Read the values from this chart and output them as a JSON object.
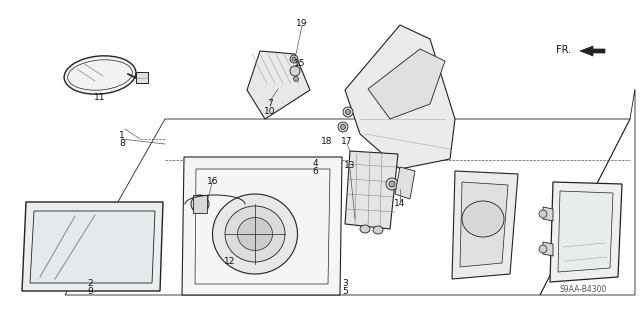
{
  "bg_color": "#ffffff",
  "line_color": "#222222",
  "diagram_code": "S9AA-B4300",
  "fig_w": 6.4,
  "fig_h": 3.19,
  "dpi": 100
}
